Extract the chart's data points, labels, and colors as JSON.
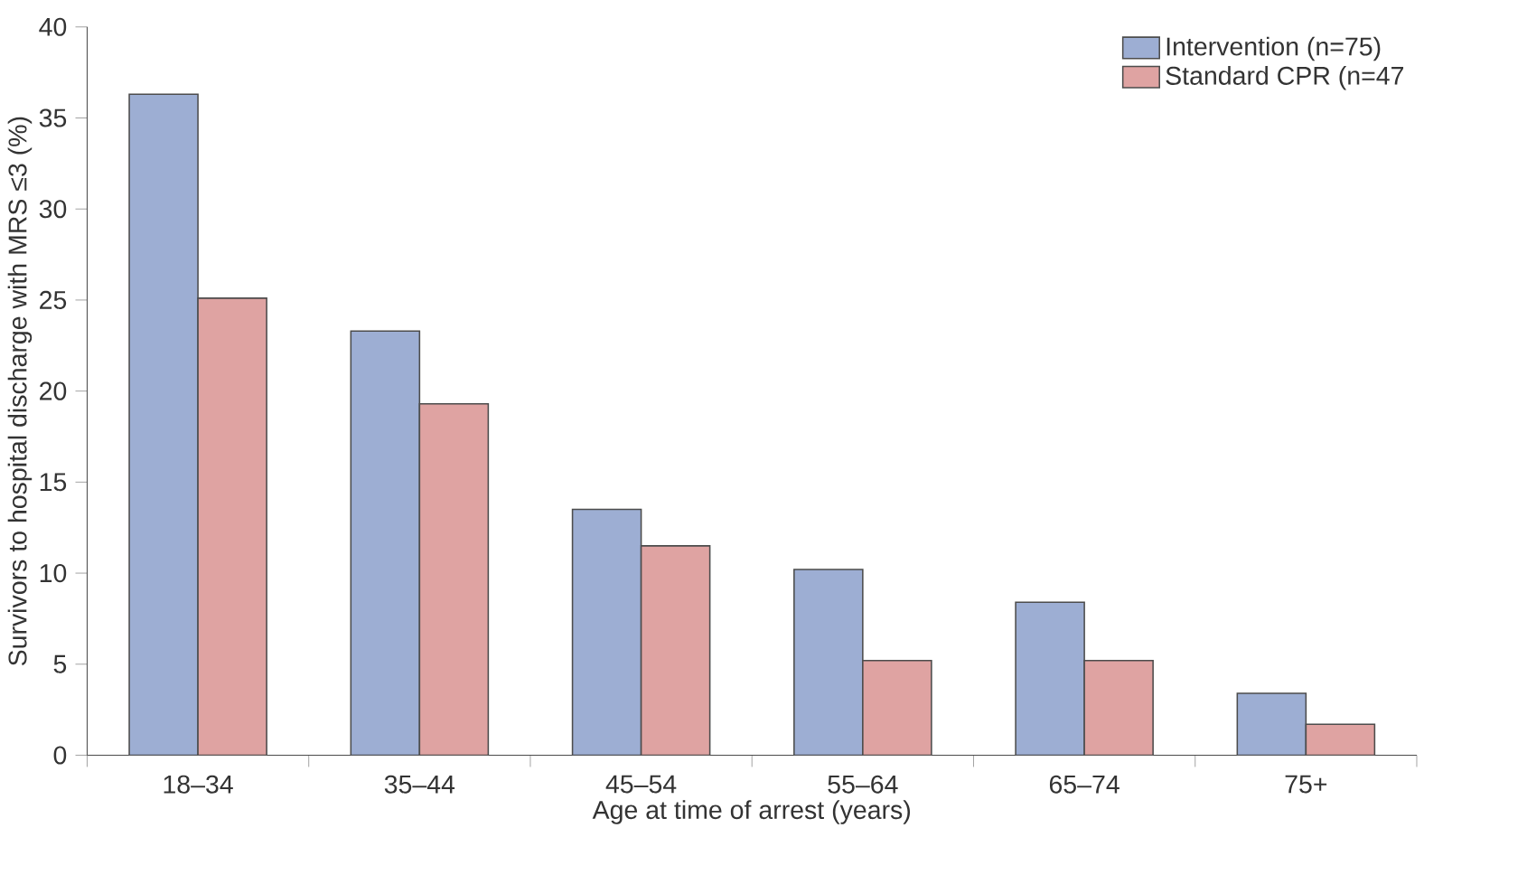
{
  "chart_data": {
    "type": "bar",
    "xlabel": "Age at time of arrest (years)",
    "ylabel": "Survivors to hospital discharge with MRS ≤3 (%)",
    "categories": [
      "18–34",
      "35–44",
      "45–54",
      "55–64",
      "65–74",
      "75+"
    ],
    "series": [
      {
        "name": "Intervention (n=75)",
        "color": "#9daed3",
        "values": [
          36.3,
          23.3,
          13.5,
          10.2,
          8.4,
          3.4
        ]
      },
      {
        "name": "Standard CPR (n=47",
        "color": "#dfa3a2",
        "values": [
          25.1,
          19.3,
          11.5,
          5.2,
          5.2,
          1.7
        ]
      }
    ],
    "ylim": [
      0,
      40
    ],
    "yticks": [
      0,
      5,
      10,
      15,
      20,
      25,
      30,
      35,
      40
    ],
    "grid": false,
    "legend": "top right"
  }
}
